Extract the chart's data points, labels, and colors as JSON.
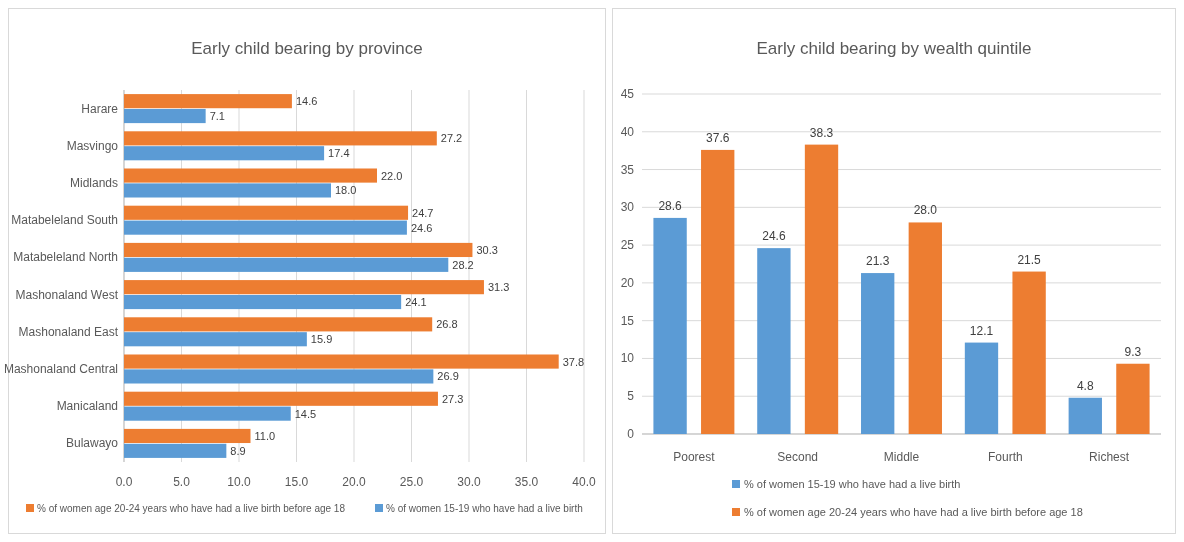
{
  "chart_data": [
    {
      "type": "bar",
      "orientation": "horizontal",
      "title": "Early child bearing by province",
      "categories": [
        "Harare",
        "Masvingo",
        "Midlands",
        "Matabeleland South",
        "Matabeleland North",
        "Mashonaland West",
        "Mashonaland East",
        "Mashonaland Central",
        "Manicaland",
        "Bulawayo"
      ],
      "series": [
        {
          "name": "% of women age 20-24 years who have had a live birth before age 18",
          "color": "#ed7d31",
          "values": [
            14.6,
            27.2,
            22.0,
            24.7,
            30.3,
            31.3,
            26.8,
            37.8,
            27.3,
            11.0
          ],
          "value_labels": [
            "14.6",
            "27.2",
            "22.0",
            "24.7",
            "30.3",
            "31.3",
            "26.8",
            "37.8",
            "27.3",
            "11.0"
          ]
        },
        {
          "name": "% of women 15-19 who have had a live birth",
          "color": "#5b9bd5",
          "values": [
            7.1,
            17.4,
            18.0,
            24.6,
            28.2,
            24.1,
            15.9,
            26.9,
            14.5,
            8.9
          ],
          "value_labels": [
            "7.1",
            "17.4",
            "18.0",
            "24.6",
            "28.2",
            "24.1",
            "15.9",
            "26.9",
            "14.5",
            "8.9"
          ]
        }
      ],
      "xlim": [
        0,
        40
      ],
      "xticks": [
        {
          "value": 0,
          "label": "0.0"
        },
        {
          "value": 5,
          "label": "5.0"
        },
        {
          "value": 10,
          "label": "10.0"
        },
        {
          "value": 15,
          "label": "15.0"
        },
        {
          "value": 20,
          "label": "20.0"
        },
        {
          "value": 25,
          "label": "25.0"
        },
        {
          "value": 30,
          "label": "30.0"
        },
        {
          "value": 35,
          "label": "35.0"
        },
        {
          "value": 40,
          "label": "40.0"
        }
      ],
      "grid": true,
      "legend": "bottom"
    },
    {
      "type": "bar",
      "title": "Early child bearing by wealth quintile",
      "categories": [
        "Poorest",
        "Second",
        "Middle",
        "Fourth",
        "Richest"
      ],
      "series": [
        {
          "name": "% of women 15-19 who have had a live birth",
          "color": "#5b9bd5",
          "values": [
            28.6,
            24.6,
            21.3,
            12.1,
            4.8
          ],
          "value_labels": [
            "28.6",
            "24.6",
            "21.3",
            "12.1",
            "4.8"
          ]
        },
        {
          "name": "% of women age 20-24 years who have had a live birth before age 18",
          "color": "#ed7d31",
          "values": [
            37.6,
            38.3,
            28.0,
            21.5,
            9.3
          ],
          "value_labels": [
            "37.6",
            "38.3",
            "28.0",
            "21.5",
            "9.3"
          ]
        }
      ],
      "ylim": [
        0,
        45
      ],
      "yticks": [
        0,
        5,
        10,
        15,
        20,
        25,
        30,
        35,
        40,
        45
      ],
      "grid": true,
      "legend": "bottom left"
    }
  ]
}
